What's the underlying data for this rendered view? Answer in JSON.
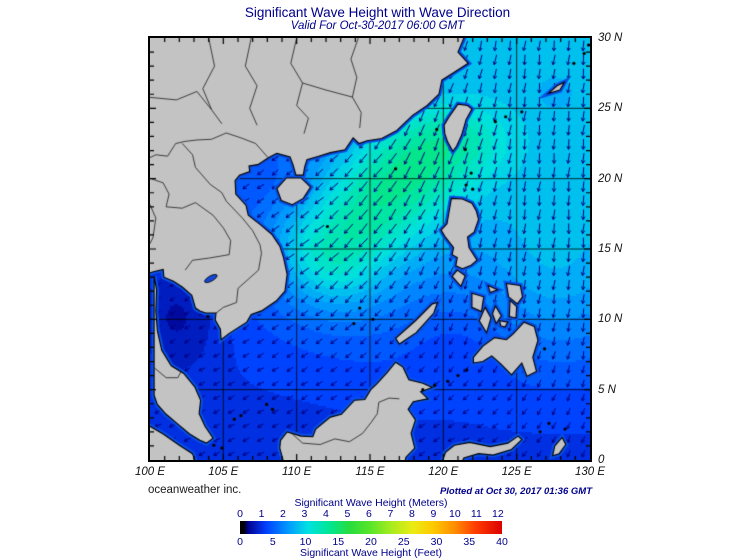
{
  "header": {
    "title": "Significant Wave Height with Wave Direction",
    "subtitle": "Valid For Oct-30-2017 06:00 GMT"
  },
  "map": {
    "x_ticks": [
      "100 E",
      "105 E",
      "110 E",
      "115 E",
      "120 E",
      "125 E",
      "130 E"
    ],
    "y_ticks": [
      "30 N",
      "25 N",
      "20 N",
      "15 N",
      "10 N",
      "5 N",
      "0"
    ],
    "extent": {
      "lon_min": 100,
      "lon_max": 130,
      "lat_min": 0,
      "lat_max": 30
    },
    "grid_interval_deg": 5
  },
  "credits": {
    "left": "oceanweather inc.",
    "right": "Plotted at Oct 30, 2017 01:36 GMT"
  },
  "colorbar": {
    "title_meters": "Significant Wave Height (Meters)",
    "title_feet": "Significant Wave Height (Feet)",
    "meters_ticks": [
      "0",
      "1",
      "2",
      "3",
      "4",
      "5",
      "6",
      "7",
      "8",
      "9",
      "10",
      "11",
      "12"
    ],
    "feet_ticks": [
      "0",
      "5",
      "10",
      "15",
      "20",
      "25",
      "30",
      "35",
      "40"
    ],
    "meters_max": 12,
    "feet_max": 40,
    "gradient": [
      [
        "0%",
        "#000000"
      ],
      [
        "1.5%",
        "#000000"
      ],
      [
        "3%",
        "#00008c"
      ],
      [
        "10%",
        "#0040ff"
      ],
      [
        "18%",
        "#0096ff"
      ],
      [
        "26%",
        "#00e1e1"
      ],
      [
        "34%",
        "#00e696"
      ],
      [
        "42%",
        "#28dc3c"
      ],
      [
        "50%",
        "#5ae628"
      ],
      [
        "58%",
        "#aaeb1e"
      ],
      [
        "66%",
        "#ebeb14"
      ],
      [
        "74%",
        "#ffc800"
      ],
      [
        "82%",
        "#ff8c00"
      ],
      [
        "90%",
        "#ff3c00"
      ],
      [
        "100%",
        "#dc0000"
      ]
    ]
  },
  "colors": {
    "heading": "#00008b",
    "axis_label": "#111111",
    "land": "#c3c3c3",
    "coastline": "#000000",
    "coastal_fringe": "#0a50e6",
    "arrow": "#000080",
    "grid": "#000000",
    "frame": "#000000",
    "border_line": "#1a1a1a",
    "lake": "#1446dc"
  }
}
